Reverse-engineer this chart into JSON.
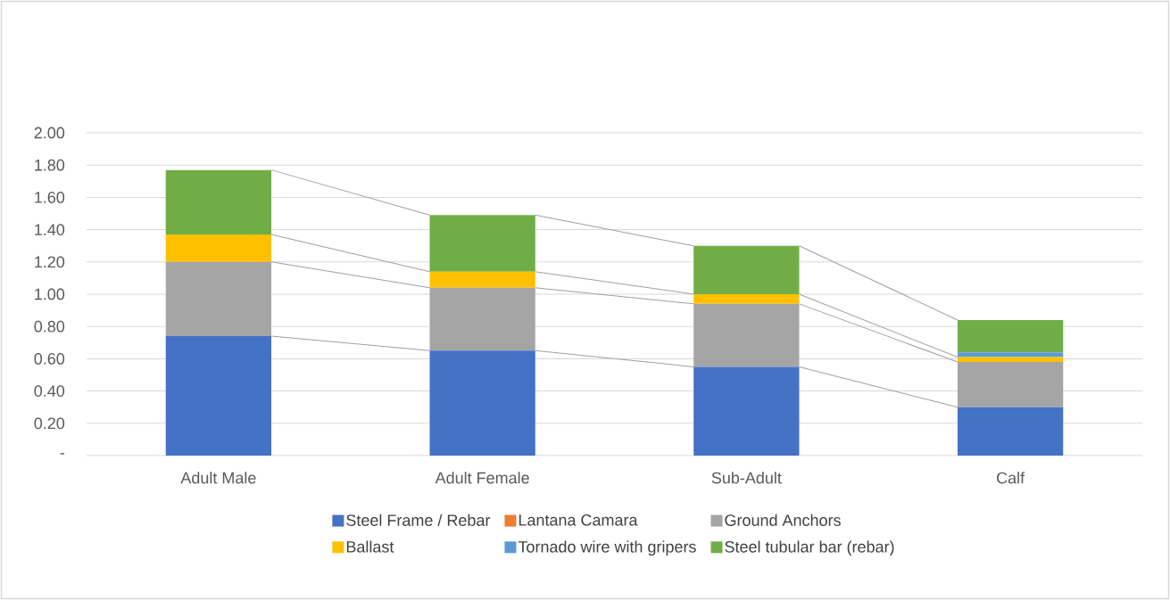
{
  "chart_data": {
    "type": "bar",
    "stacked": true,
    "categories": [
      "Adult Male",
      "Adult Female",
      "Sub-Adult",
      "Calf"
    ],
    "series": [
      {
        "name": "Steel Frame / Rebar",
        "color": "#4472c4",
        "values": [
          0.74,
          0.65,
          0.55,
          0.3
        ]
      },
      {
        "name": "Lantana Camara",
        "color": "#ed7d31",
        "values": [
          0,
          0,
          0,
          0
        ]
      },
      {
        "name": "Ground Anchors",
        "color": "#a5a5a5",
        "values": [
          0.46,
          0.39,
          0.39,
          0.28
        ]
      },
      {
        "name": "Ballast",
        "color": "#ffc000",
        "values": [
          0.17,
          0.1,
          0.06,
          0.03
        ]
      },
      {
        "name": "Tornado wire with gripers",
        "color": "#5b9bd5",
        "values": [
          0,
          0,
          0,
          0.03
        ]
      },
      {
        "name": "Steel tubular bar (rebar)",
        "color": "#70ad47",
        "values": [
          0.4,
          0.35,
          0.3,
          0.2
        ]
      }
    ],
    "ylim": [
      0,
      2
    ],
    "yticks": [
      {
        "value": 0,
        "label": "-"
      },
      {
        "value": 0.2,
        "label": "0.20"
      },
      {
        "value": 0.4,
        "label": "0.40"
      },
      {
        "value": 0.6,
        "label": "0.60"
      },
      {
        "value": 0.8,
        "label": "0.80"
      },
      {
        "value": 1,
        "label": "1.00"
      },
      {
        "value": 1.2,
        "label": "1.20"
      },
      {
        "value": 1.4,
        "label": "1.40"
      },
      {
        "value": 1.6,
        "label": "1.60"
      },
      {
        "value": 1.8,
        "label": "1.80"
      },
      {
        "value": 2,
        "label": "2.00"
      }
    ],
    "grid": "y",
    "legend": "bottom"
  }
}
